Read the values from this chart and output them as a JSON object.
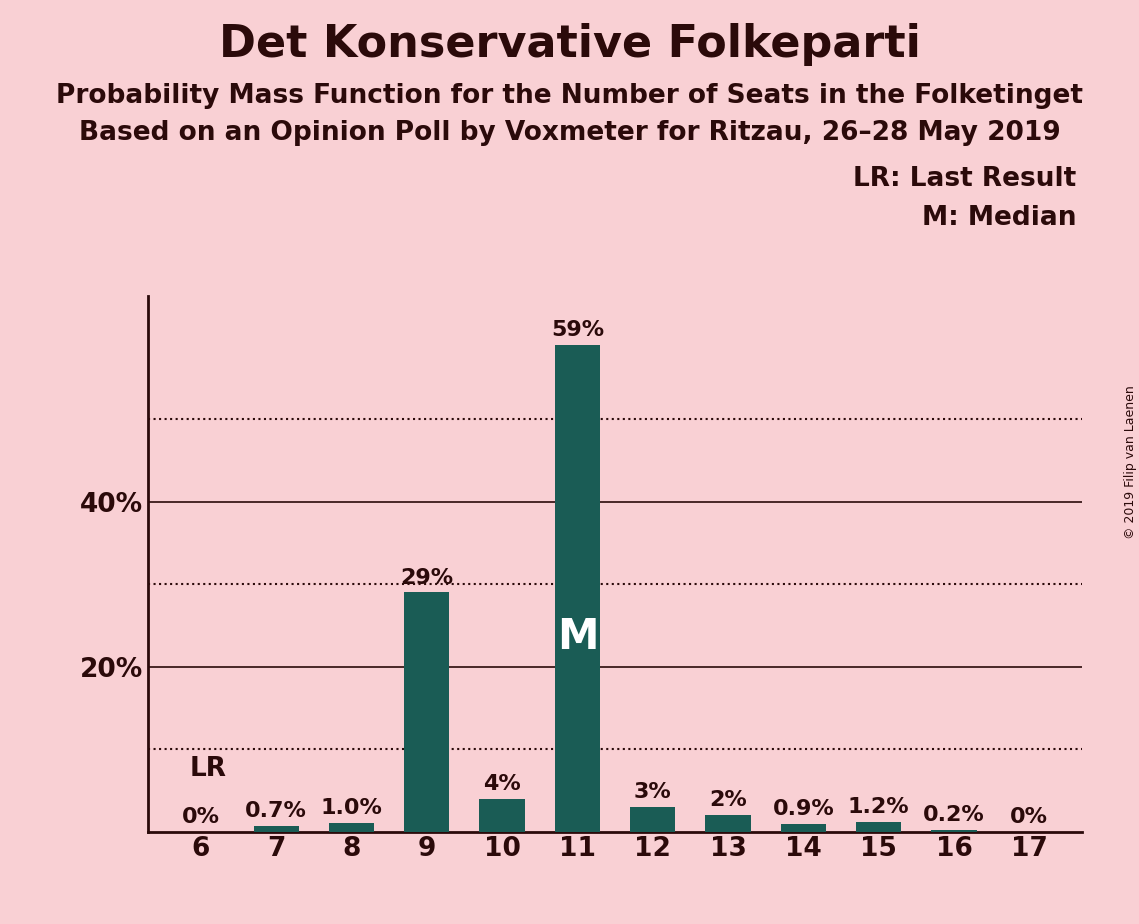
{
  "title": "Det Konservative Folkeparti",
  "subtitle1": "Probability Mass Function for the Number of Seats in the Folketinget",
  "subtitle2": "Based on an Opinion Poll by Voxmeter for Ritzau, 26–28 May 2019",
  "copyright": "© 2019 Filip van Laenen",
  "categories": [
    6,
    7,
    8,
    9,
    10,
    11,
    12,
    13,
    14,
    15,
    16,
    17
  ],
  "values": [
    0.0,
    0.7,
    1.0,
    29.0,
    4.0,
    59.0,
    3.0,
    2.0,
    0.9,
    1.2,
    0.2,
    0.0
  ],
  "labels": [
    "0%",
    "0.7%",
    "1.0%",
    "29%",
    "4%",
    "59%",
    "3%",
    "2%",
    "0.9%",
    "1.2%",
    "0.2%",
    "0%"
  ],
  "bar_color": "#1a5c55",
  "background_color": "#f9d0d4",
  "title_color": "#2b0a0a",
  "text_color": "#2b0a0a",
  "grid_color": "#2b0a0a",
  "lr_seat": 6,
  "median_seat": 11,
  "ylim": [
    0,
    65
  ],
  "solid_lines": [
    20,
    40
  ],
  "dotted_lines": [
    10,
    30,
    50
  ],
  "legend_lr": "LR: Last Result",
  "legend_m": "M: Median"
}
